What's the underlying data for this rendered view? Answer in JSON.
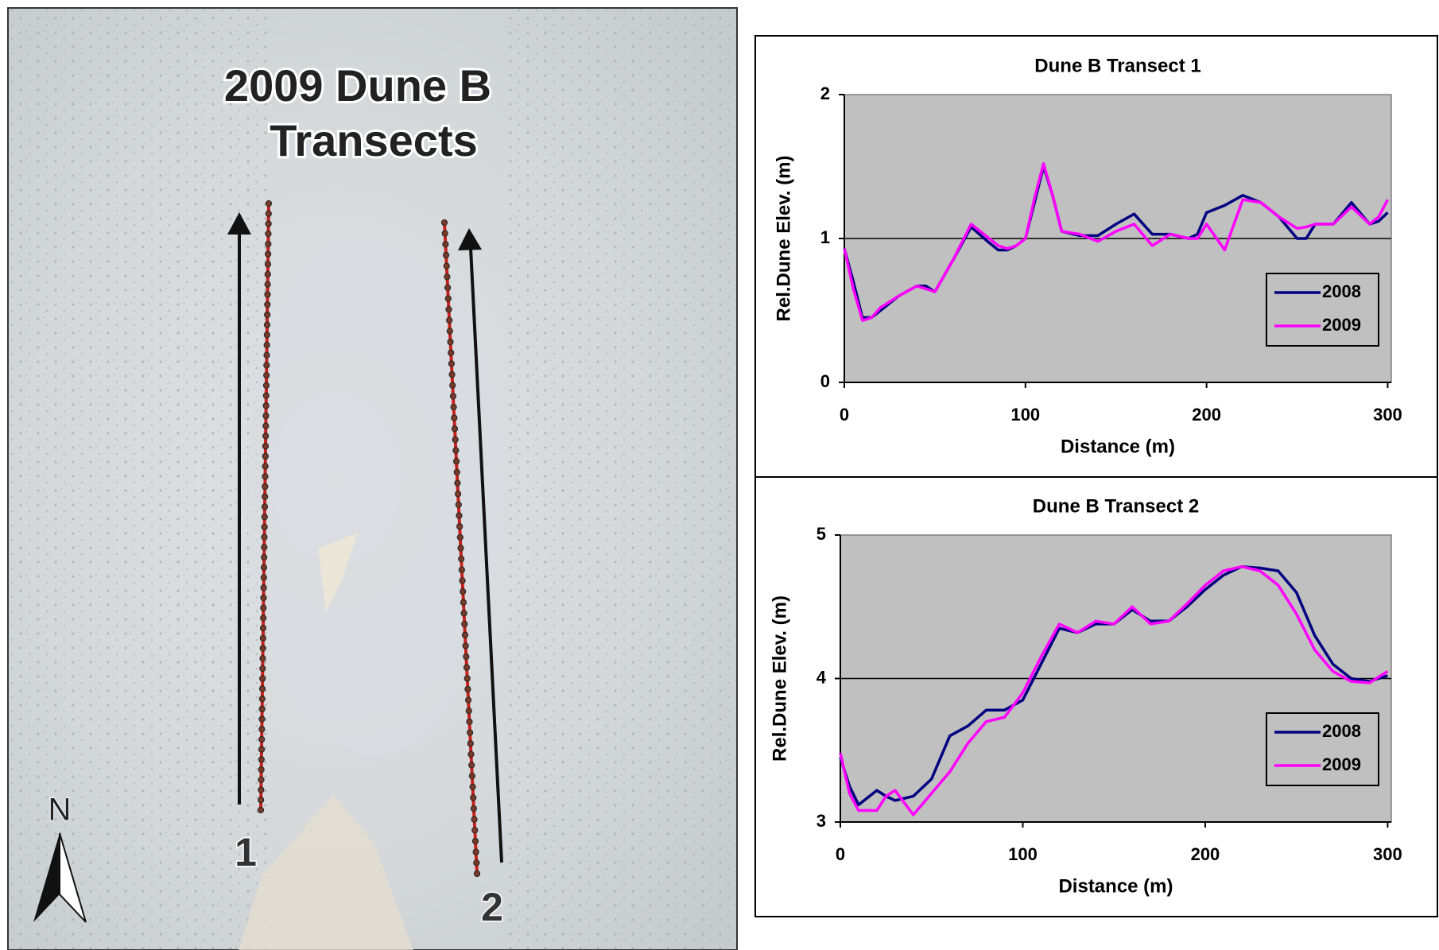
{
  "map": {
    "title_lines": [
      "2009 Dune B",
      "Transects"
    ],
    "transect_labels": [
      "1",
      "2"
    ],
    "north": "N"
  },
  "chart_data": [
    {
      "type": "line",
      "title": "Dune B Transect 1",
      "x_label": "Distance (m)",
      "y_label": "Rel.Dune Elev. (m)",
      "x": [
        0,
        5,
        10,
        15,
        20,
        30,
        40,
        45,
        50,
        60,
        70,
        80,
        85,
        90,
        95,
        100,
        105,
        110,
        115,
        120,
        130,
        140,
        150,
        160,
        170,
        180,
        190,
        195,
        200,
        210,
        220,
        230,
        240,
        250,
        255,
        260,
        270,
        280,
        290,
        295,
        300
      ],
      "series": [
        {
          "name": "2008",
          "color": "#000080",
          "values": [
            0.93,
            0.7,
            0.45,
            0.45,
            0.5,
            0.6,
            0.67,
            0.67,
            0.63,
            0.85,
            1.08,
            0.97,
            0.92,
            0.92,
            0.95,
            1.0,
            1.25,
            1.5,
            1.3,
            1.05,
            1.02,
            1.02,
            1.1,
            1.17,
            1.03,
            1.03,
            1.0,
            1.03,
            1.18,
            1.23,
            1.3,
            1.25,
            1.15,
            1.0,
            1.0,
            1.1,
            1.1,
            1.25,
            1.1,
            1.12,
            1.18
          ]
        },
        {
          "name": "2009",
          "color": "#ff00ff",
          "values": [
            0.93,
            0.65,
            0.43,
            0.45,
            0.52,
            0.6,
            0.67,
            0.65,
            0.63,
            0.85,
            1.1,
            1.0,
            0.95,
            0.93,
            0.95,
            1.0,
            1.28,
            1.52,
            1.3,
            1.05,
            1.03,
            0.98,
            1.05,
            1.1,
            0.95,
            1.03,
            1.0,
            1.0,
            1.1,
            0.92,
            1.27,
            1.25,
            1.15,
            1.07,
            1.08,
            1.1,
            1.1,
            1.22,
            1.1,
            1.15,
            1.27
          ]
        }
      ],
      "xlim": [
        0,
        302
      ],
      "xticks": [
        0,
        100,
        200,
        300
      ],
      "ylim": [
        0,
        2
      ],
      "yticks": [
        0,
        1,
        2
      ],
      "grid": true,
      "legend": "lower right",
      "background": "#c0c0c0"
    },
    {
      "type": "line",
      "title": "Dune B Transect 2",
      "x_label": "Distance (m)",
      "y_label": "Rel.Dune Elev. (m)",
      "x": [
        0,
        5,
        10,
        20,
        25,
        30,
        40,
        50,
        60,
        70,
        80,
        90,
        100,
        110,
        120,
        130,
        140,
        150,
        160,
        170,
        180,
        190,
        200,
        210,
        220,
        230,
        240,
        250,
        260,
        270,
        280,
        290,
        300
      ],
      "series": [
        {
          "name": "2008",
          "color": "#000080",
          "values": [
            3.45,
            3.25,
            3.12,
            3.22,
            3.18,
            3.15,
            3.18,
            3.3,
            3.6,
            3.67,
            3.78,
            3.78,
            3.85,
            4.1,
            4.35,
            4.32,
            4.38,
            4.38,
            4.48,
            4.4,
            4.4,
            4.5,
            4.62,
            4.72,
            4.78,
            4.77,
            4.75,
            4.6,
            4.3,
            4.1,
            4.0,
            3.98,
            4.02
          ]
        },
        {
          "name": "2009",
          "color": "#ff00ff",
          "values": [
            3.48,
            3.2,
            3.08,
            3.08,
            3.18,
            3.22,
            3.05,
            3.2,
            3.35,
            3.55,
            3.7,
            3.73,
            3.9,
            4.15,
            4.38,
            4.32,
            4.4,
            4.38,
            4.5,
            4.38,
            4.4,
            4.52,
            4.65,
            4.75,
            4.78,
            4.75,
            4.65,
            4.45,
            4.2,
            4.05,
            3.98,
            3.97,
            4.05
          ]
        }
      ],
      "xlim": [
        0,
        302
      ],
      "xticks": [
        0,
        100,
        200,
        300
      ],
      "ylim": [
        3,
        5
      ],
      "yticks": [
        3,
        4,
        5
      ],
      "grid": true,
      "legend": "lower right",
      "background": "#c0c0c0"
    }
  ]
}
